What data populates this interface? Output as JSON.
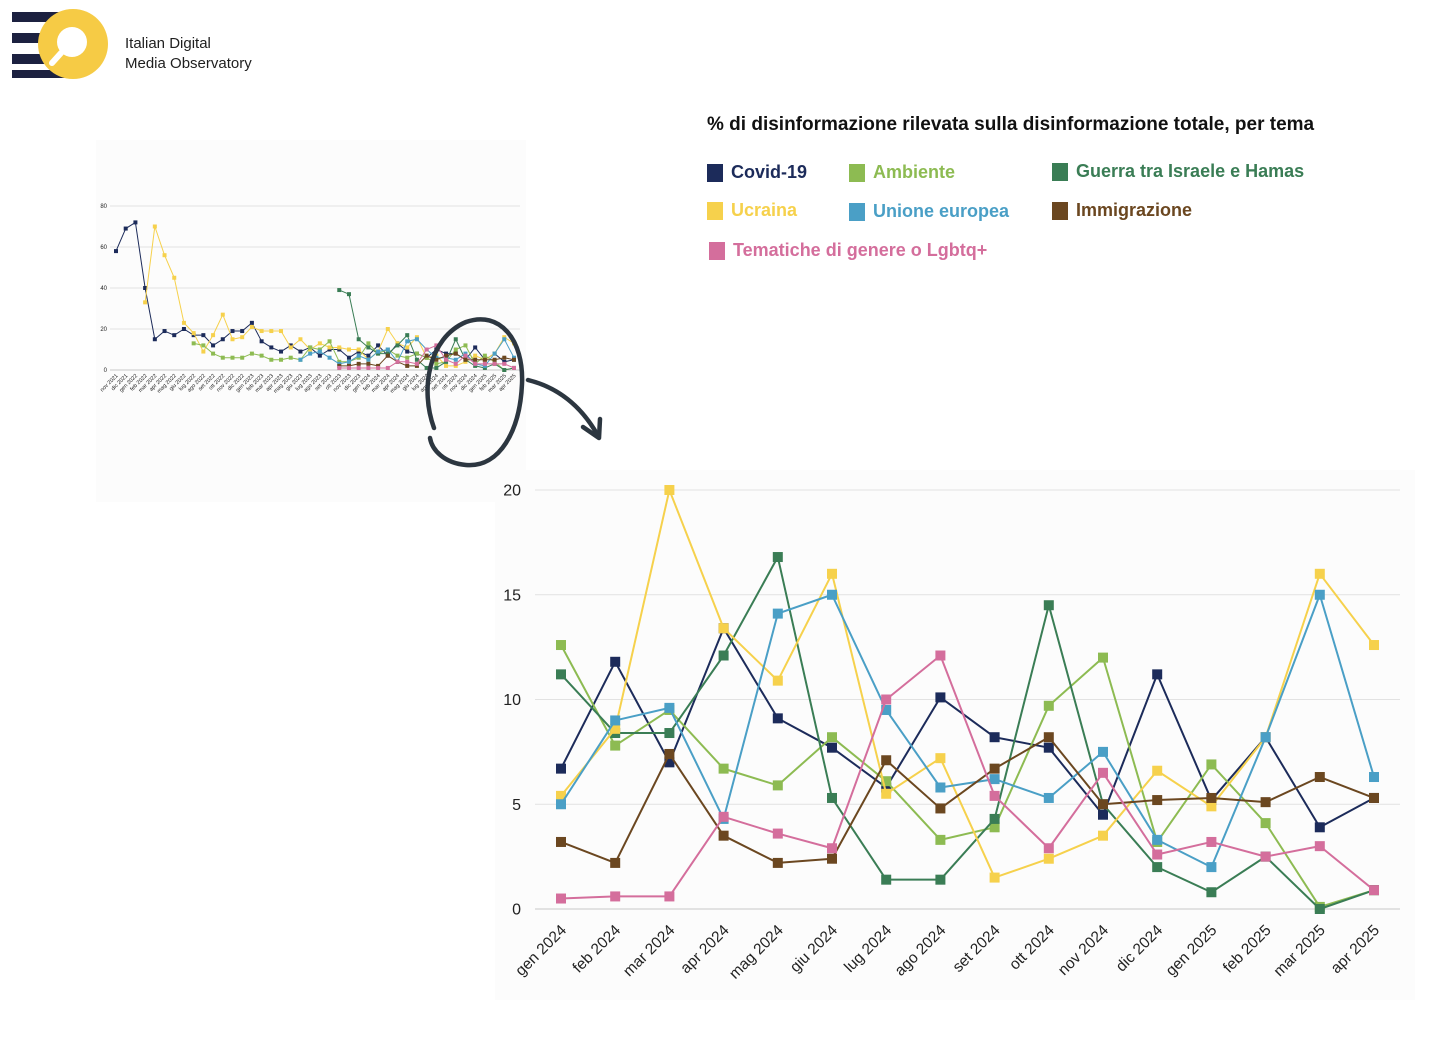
{
  "header": {
    "logo_line1": "Italian Digital",
    "logo_line2": "Media Observatory"
  },
  "colors": {
    "brand_navy": "#1c2140",
    "brand_yellow": "#f6cb45"
  },
  "chart_data": [
    {
      "type": "line",
      "title": "% di disinformazione rilevata sulla disinformazione totale, per tema",
      "categories": [
        "gen 2024",
        "feb 2024",
        "mar 2024",
        "apr 2024",
        "mag 2024",
        "giu 2024",
        "lug 2024",
        "ago 2024",
        "set 2024",
        "ott 2024",
        "nov 2024",
        "dic 2024",
        "gen 2025",
        "feb 2025",
        "mar 2025",
        "apr 2025"
      ],
      "ylim": [
        0,
        20
      ],
      "yticks": [
        0,
        5,
        10,
        15,
        20
      ],
      "grid": true,
      "legend_position": "top",
      "series": [
        {
          "name": "Covid-19",
          "color": "#1c2b5a",
          "values": [
            6.7,
            11.8,
            7.0,
            13.4,
            9.1,
            7.7,
            5.8,
            10.1,
            8.2,
            7.7,
            4.5,
            11.2,
            5.2,
            8.2,
            3.9,
            5.3
          ]
        },
        {
          "name": "Ambiente",
          "color": "#8dbb52",
          "values": [
            12.6,
            7.8,
            9.5,
            6.7,
            5.9,
            8.2,
            6.1,
            3.3,
            3.9,
            9.7,
            12.0,
            3.2,
            6.9,
            4.1,
            0.1,
            0.9
          ]
        },
        {
          "name": "Guerra tra Israele e Hamas",
          "color": "#3a7d55",
          "values": [
            11.2,
            8.4,
            8.4,
            12.1,
            16.8,
            5.3,
            1.4,
            1.4,
            4.3,
            14.5,
            5.0,
            2.0,
            0.8,
            2.5,
            0.0,
            0.9
          ]
        },
        {
          "name": "Ucraina",
          "color": "#f6d14c",
          "values": [
            5.4,
            8.6,
            20.0,
            13.4,
            10.9,
            16.0,
            5.5,
            7.2,
            1.5,
            2.4,
            3.5,
            6.6,
            4.9,
            8.2,
            16.0,
            12.6
          ]
        },
        {
          "name": "Unione europea",
          "color": "#4a9fc6",
          "values": [
            5.0,
            9.0,
            9.6,
            4.3,
            14.1,
            15.0,
            9.5,
            5.8,
            6.2,
            5.3,
            7.5,
            3.3,
            2.0,
            8.2,
            15.0,
            6.3
          ]
        },
        {
          "name": "Immigrazione",
          "color": "#6b4720",
          "values": [
            3.2,
            2.2,
            7.4,
            3.5,
            2.2,
            2.4,
            7.1,
            4.8,
            6.7,
            8.2,
            5.0,
            5.2,
            5.3,
            5.1,
            6.3,
            5.3
          ]
        },
        {
          "name": "Tematiche di genere o Lgbtq+",
          "color": "#d46e9c",
          "values": [
            0.5,
            0.6,
            0.6,
            4.4,
            3.6,
            2.9,
            10.0,
            12.1,
            5.4,
            2.9,
            6.5,
            2.6,
            3.2,
            2.5,
            3.0,
            0.9
          ]
        }
      ]
    },
    {
      "type": "line",
      "categories": [
        "nov 2021",
        "dic 2021",
        "gen 2022",
        "feb 2022",
        "mar 2022",
        "apr 2022",
        "mag 2022",
        "giu 2022",
        "lug 2022",
        "ago 2022",
        "set 2022",
        "ott 2022",
        "nov 2022",
        "dic 2022",
        "gen 2023",
        "feb 2023",
        "mar 2023",
        "apr 2023",
        "mag 2023",
        "giu 2023",
        "lug 2023",
        "ago 2023",
        "set 2023",
        "ott 2023",
        "nov 2023",
        "dic 2023",
        "gen 2024",
        "feb 2024",
        "mar 2024",
        "apr 2024",
        "mag 2024",
        "giu 2024",
        "lug 2024",
        "ago 2024",
        "set 2024",
        "ott 2024",
        "nov 2024",
        "dic 2024",
        "gen 2025",
        "feb 2025",
        "mar 2025",
        "apr 2025"
      ],
      "ylim": [
        0,
        80
      ],
      "yticks": [
        0,
        20,
        40,
        60,
        80
      ],
      "grid": true,
      "series": [
        {
          "name": "Covid-19",
          "color": "#1c2b5a",
          "values": [
            58,
            69,
            72,
            40,
            15,
            19,
            17,
            20,
            17,
            17,
            12,
            15,
            19,
            19,
            23,
            14,
            11,
            9,
            12,
            9,
            11,
            7,
            10,
            10,
            6,
            9,
            7,
            12,
            7,
            13,
            9,
            8,
            6,
            10,
            8,
            8,
            5,
            11,
            5,
            8,
            4,
            5
          ]
        },
        {
          "name": "Ucraina",
          "color": "#f6d14c",
          "values": [
            null,
            null,
            null,
            33,
            70,
            56,
            45,
            23,
            18,
            9,
            17,
            27,
            15,
            16,
            21,
            19,
            19,
            19,
            11,
            15,
            10,
            13,
            11,
            11,
            10,
            10,
            5,
            9,
            20,
            13,
            11,
            16,
            6,
            7,
            2,
            2,
            4,
            7,
            5,
            8,
            16,
            13
          ]
        },
        {
          "name": "Ambiente",
          "color": "#8dbb52",
          "values": [
            null,
            null,
            null,
            null,
            null,
            null,
            null,
            null,
            13,
            12,
            8,
            6,
            6,
            6,
            8,
            7,
            5,
            5,
            6,
            5,
            11,
            10,
            14,
            4,
            4,
            6,
            13,
            8,
            10,
            7,
            6,
            8,
            6,
            3,
            4,
            10,
            12,
            3,
            7,
            4,
            0,
            1
          ]
        },
        {
          "name": "Guerra tra Israele e Hamas",
          "color": "#3a7d55",
          "values": [
            null,
            null,
            null,
            null,
            null,
            null,
            null,
            null,
            null,
            null,
            null,
            null,
            null,
            null,
            null,
            null,
            null,
            null,
            null,
            null,
            null,
            null,
            null,
            39,
            37,
            15,
            11,
            8,
            8,
            12,
            17,
            5,
            1,
            1,
            4,
            15,
            5,
            2,
            1,
            3,
            0,
            1
          ]
        },
        {
          "name": "Unione europea",
          "color": "#4a9fc6",
          "values": [
            null,
            null,
            null,
            null,
            null,
            null,
            null,
            null,
            null,
            null,
            null,
            null,
            null,
            null,
            null,
            null,
            null,
            null,
            null,
            5,
            8,
            9,
            6,
            3,
            4,
            7,
            5,
            9,
            10,
            4,
            14,
            15,
            10,
            6,
            6,
            5,
            8,
            3,
            2,
            8,
            15,
            6
          ]
        },
        {
          "name": "Immigrazione",
          "color": "#6b4720",
          "values": [
            null,
            null,
            null,
            null,
            null,
            null,
            null,
            null,
            null,
            null,
            null,
            null,
            null,
            null,
            null,
            null,
            null,
            null,
            null,
            null,
            null,
            null,
            null,
            2,
            2,
            3,
            3,
            2,
            7,
            4,
            2,
            2,
            7,
            5,
            7,
            8,
            5,
            5,
            5,
            5,
            6,
            5
          ]
        },
        {
          "name": "Tematiche di genere o Lgbtq+",
          "color": "#d46e9c",
          "values": [
            null,
            null,
            null,
            null,
            null,
            null,
            null,
            null,
            null,
            null,
            null,
            null,
            null,
            null,
            null,
            null,
            null,
            null,
            null,
            null,
            null,
            null,
            null,
            1,
            1,
            1,
            1,
            1,
            1,
            4,
            4,
            3,
            10,
            12,
            5,
            3,
            7,
            3,
            3,
            3,
            3,
            1
          ]
        }
      ]
    }
  ]
}
